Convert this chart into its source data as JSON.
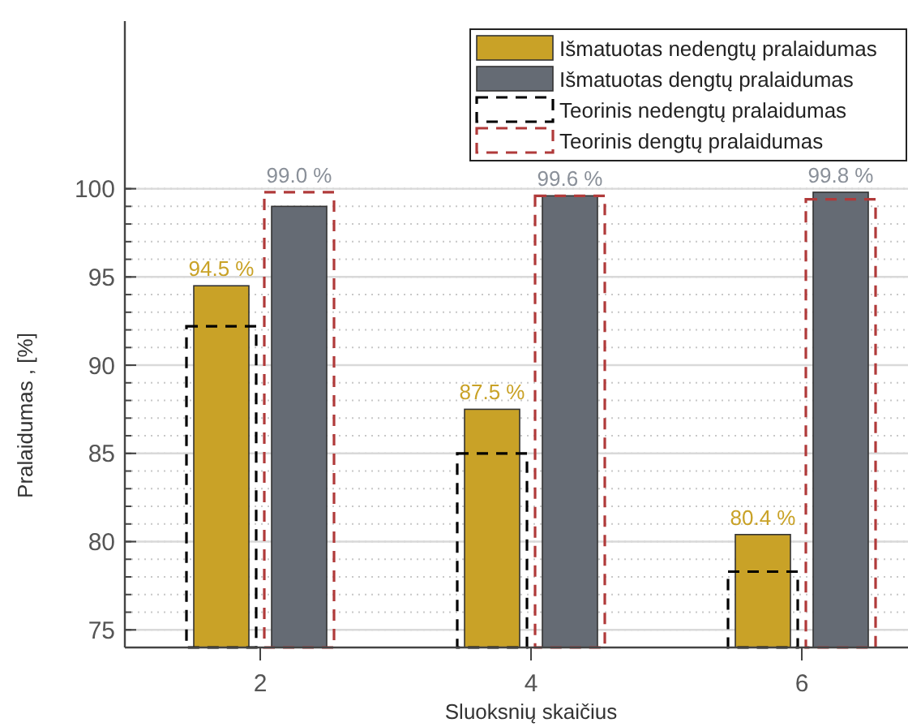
{
  "chart_data": {
    "type": "bar",
    "xlabel": "Sluoksnių skaičius",
    "ylabel": "Pralaidumas , [%]",
    "categories": [
      "2",
      "4",
      "6"
    ],
    "ylim": [
      74,
      109.5
    ],
    "yticks": [
      75,
      80,
      85,
      90,
      95,
      100
    ],
    "grid": true,
    "legend": "top right",
    "series": [
      {
        "name": "Išmatuotas nedengtų pralaidumas",
        "color": "#c9a227",
        "values": [
          94.5,
          87.5,
          80.4
        ],
        "value_labels": [
          "94.5 %",
          "87.5 %",
          "80.4 %"
        ]
      },
      {
        "name": "Išmatuotas dengtų pralaidumas",
        "color": "#656b74",
        "values": [
          99.0,
          99.6,
          99.8
        ],
        "value_labels": [
          "99.0 %",
          "99.6 %",
          "99.8 %"
        ]
      },
      {
        "name": "Teorinis nedengtų pralaidumas",
        "color": "#000000",
        "values": [
          92.2,
          85.0,
          78.3
        ],
        "line_style": "dashed"
      },
      {
        "name": "Teorinis dengtų pralaidumas",
        "color": "#b03a3a",
        "values": [
          99.8,
          99.6,
          99.4
        ],
        "line_style": "dashed"
      }
    ]
  }
}
